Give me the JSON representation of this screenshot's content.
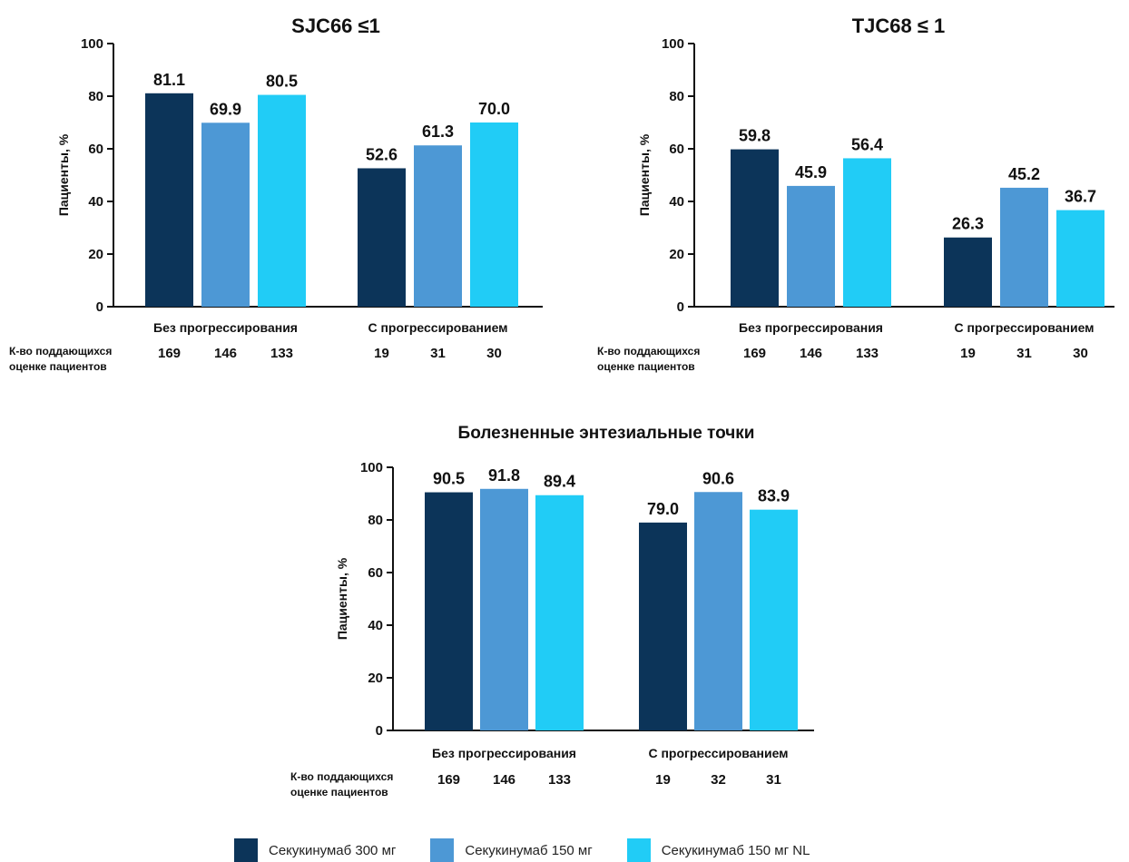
{
  "colors": {
    "series": [
      "#0c3459",
      "#4d98d5",
      "#21ccf6"
    ],
    "axis": "#111111"
  },
  "legend": [
    {
      "label": "Секукинумаб 300 мг",
      "color": "#0c3459"
    },
    {
      "label": "Секукинумаб 150 мг",
      "color": "#4d98d5"
    },
    {
      "label": "Секукинумаб 150 мг NL",
      "color": "#21ccf6"
    }
  ],
  "chart_data": [
    {
      "type": "bar",
      "title": "SJC66 ≤1",
      "ylabel": "Пациенты, %",
      "ylim": [
        0,
        100
      ],
      "yticks": [
        0,
        20,
        40,
        60,
        80,
        100
      ],
      "categories": [
        "Без прогрессирования",
        "С прогрессированием"
      ],
      "series": [
        {
          "name": "Секукинумаб 300 мг",
          "values": [
            81.1,
            52.6
          ],
          "labels": [
            "81.1",
            "52.6"
          ]
        },
        {
          "name": "Секукинумаб 150 мг",
          "values": [
            69.9,
            61.3
          ],
          "labels": [
            "69.9",
            "61.3"
          ]
        },
        {
          "name": "Секукинумаб 150 мг NL",
          "values": [
            80.5,
            70.0
          ],
          "labels": [
            "80.5",
            "70.0"
          ]
        }
      ],
      "n_label": [
        "К-во поддающихся",
        "оценке пациентов"
      ],
      "n": [
        [
          "169",
          "146",
          "133"
        ],
        [
          "19",
          "31",
          "30"
        ]
      ],
      "grid": false,
      "legend": "bottom"
    },
    {
      "type": "bar",
      "title": "TJC68 ≤ 1",
      "ylabel": "Пациенты, %",
      "ylim": [
        0,
        100
      ],
      "yticks": [
        0,
        20,
        40,
        60,
        80,
        100
      ],
      "categories": [
        "Без прогрессирования",
        "С прогрессированием"
      ],
      "series": [
        {
          "name": "Секукинумаб 300 мг",
          "values": [
            59.8,
            26.3
          ],
          "labels": [
            "59.8",
            "26.3"
          ]
        },
        {
          "name": "Секукинумаб 150 мг",
          "values": [
            45.9,
            45.2
          ],
          "labels": [
            "45.9",
            "45.2"
          ]
        },
        {
          "name": "Секукинумаб 150 мг NL",
          "values": [
            56.4,
            36.7
          ],
          "labels": [
            "56.4",
            "36.7"
          ]
        }
      ],
      "n_label": [
        "К-во поддающихся",
        "оценке пациентов"
      ],
      "n": [
        [
          "169",
          "146",
          "133"
        ],
        [
          "19",
          "31",
          "30"
        ]
      ],
      "grid": false,
      "legend": "bottom"
    },
    {
      "type": "bar",
      "title": "Болезненные энтезиальные точки",
      "ylabel": "Пациенты, %",
      "ylim": [
        0,
        100
      ],
      "yticks": [
        0,
        20,
        40,
        60,
        80,
        100
      ],
      "categories": [
        "Без прогрессирования",
        "С прогрессированием"
      ],
      "series": [
        {
          "name": "Секукинумаб 300 мг",
          "values": [
            90.5,
            79.0
          ],
          "labels": [
            "90.5",
            "79.0"
          ]
        },
        {
          "name": "Секукинумаб 150 мг",
          "values": [
            91.8,
            90.6
          ],
          "labels": [
            "91.8",
            "90.6"
          ]
        },
        {
          "name": "Секукинумаб 150 мг NL",
          "values": [
            89.4,
            83.9
          ],
          "labels": [
            "89.4",
            "83.9"
          ]
        }
      ],
      "n_label": [
        "К-во поддающихся",
        "оценке пациентов"
      ],
      "n": [
        [
          "169",
          "146",
          "133"
        ],
        [
          "19",
          "32",
          "31"
        ]
      ],
      "grid": false,
      "legend": "bottom"
    }
  ]
}
